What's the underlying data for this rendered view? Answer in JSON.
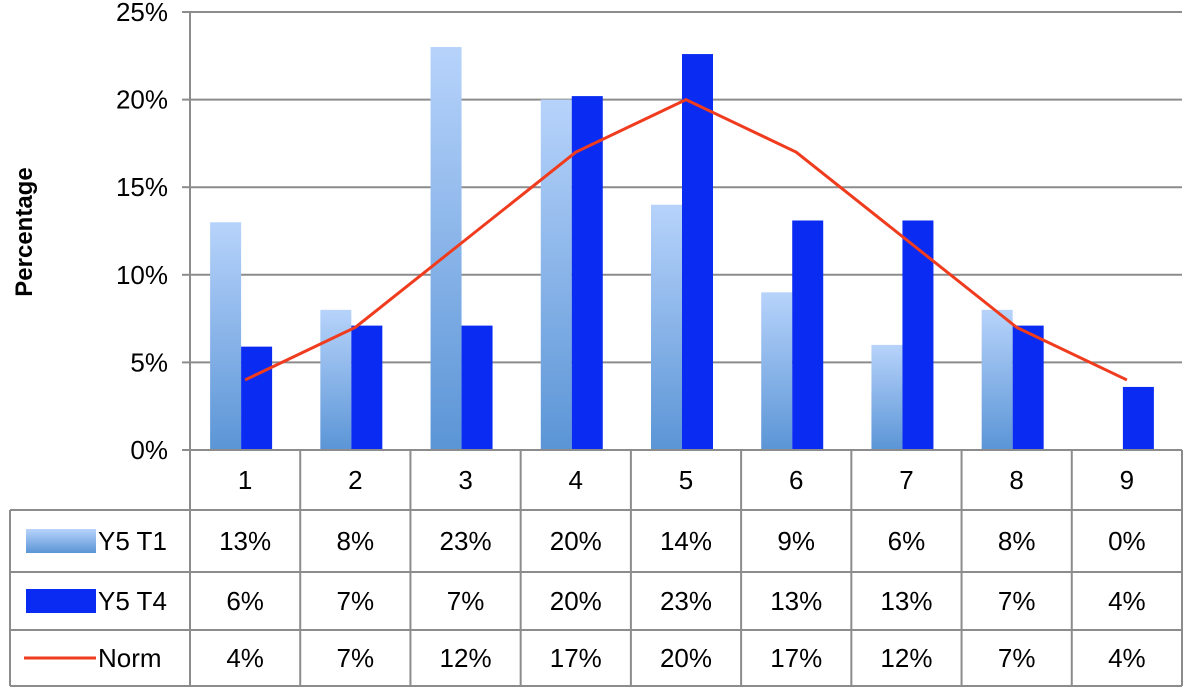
{
  "chart_data": {
    "type": "bar",
    "ylabel": "Percentage",
    "xlabel": "",
    "title": "",
    "ylim": [
      0,
      25
    ],
    "yticks": [
      "0%",
      "5%",
      "10%",
      "15%",
      "20%",
      "25%"
    ],
    "grid": true,
    "legend": "in data table, left column",
    "categories": [
      "1",
      "2",
      "3",
      "4",
      "5",
      "6",
      "7",
      "8",
      "9"
    ],
    "series": [
      {
        "name": "Y5 T1",
        "kind": "bar",
        "color": "#6fa8e6",
        "values": [
          13,
          8,
          23,
          20,
          14,
          9,
          6,
          8,
          0
        ],
        "labels": [
          "13%",
          "8%",
          "23%",
          "20%",
          "14%",
          "9%",
          "6%",
          "8%",
          "0%"
        ]
      },
      {
        "name": "Y5 T4",
        "kind": "bar",
        "color": "#0a2cf2",
        "values": [
          5.9,
          7.1,
          7.1,
          20.2,
          22.6,
          13.1,
          13.1,
          7.1,
          3.6
        ],
        "labels": [
          "6%",
          "7%",
          "7%",
          "20%",
          "23%",
          "13%",
          "13%",
          "7%",
          "4%"
        ]
      },
      {
        "name": "Norm",
        "kind": "line",
        "color": "#f03c1e",
        "values": [
          4,
          7,
          12,
          17,
          20,
          17,
          12,
          7,
          4
        ],
        "labels": [
          "4%",
          "7%",
          "12%",
          "17%",
          "20%",
          "17%",
          "12%",
          "7%",
          "4%"
        ]
      }
    ]
  }
}
